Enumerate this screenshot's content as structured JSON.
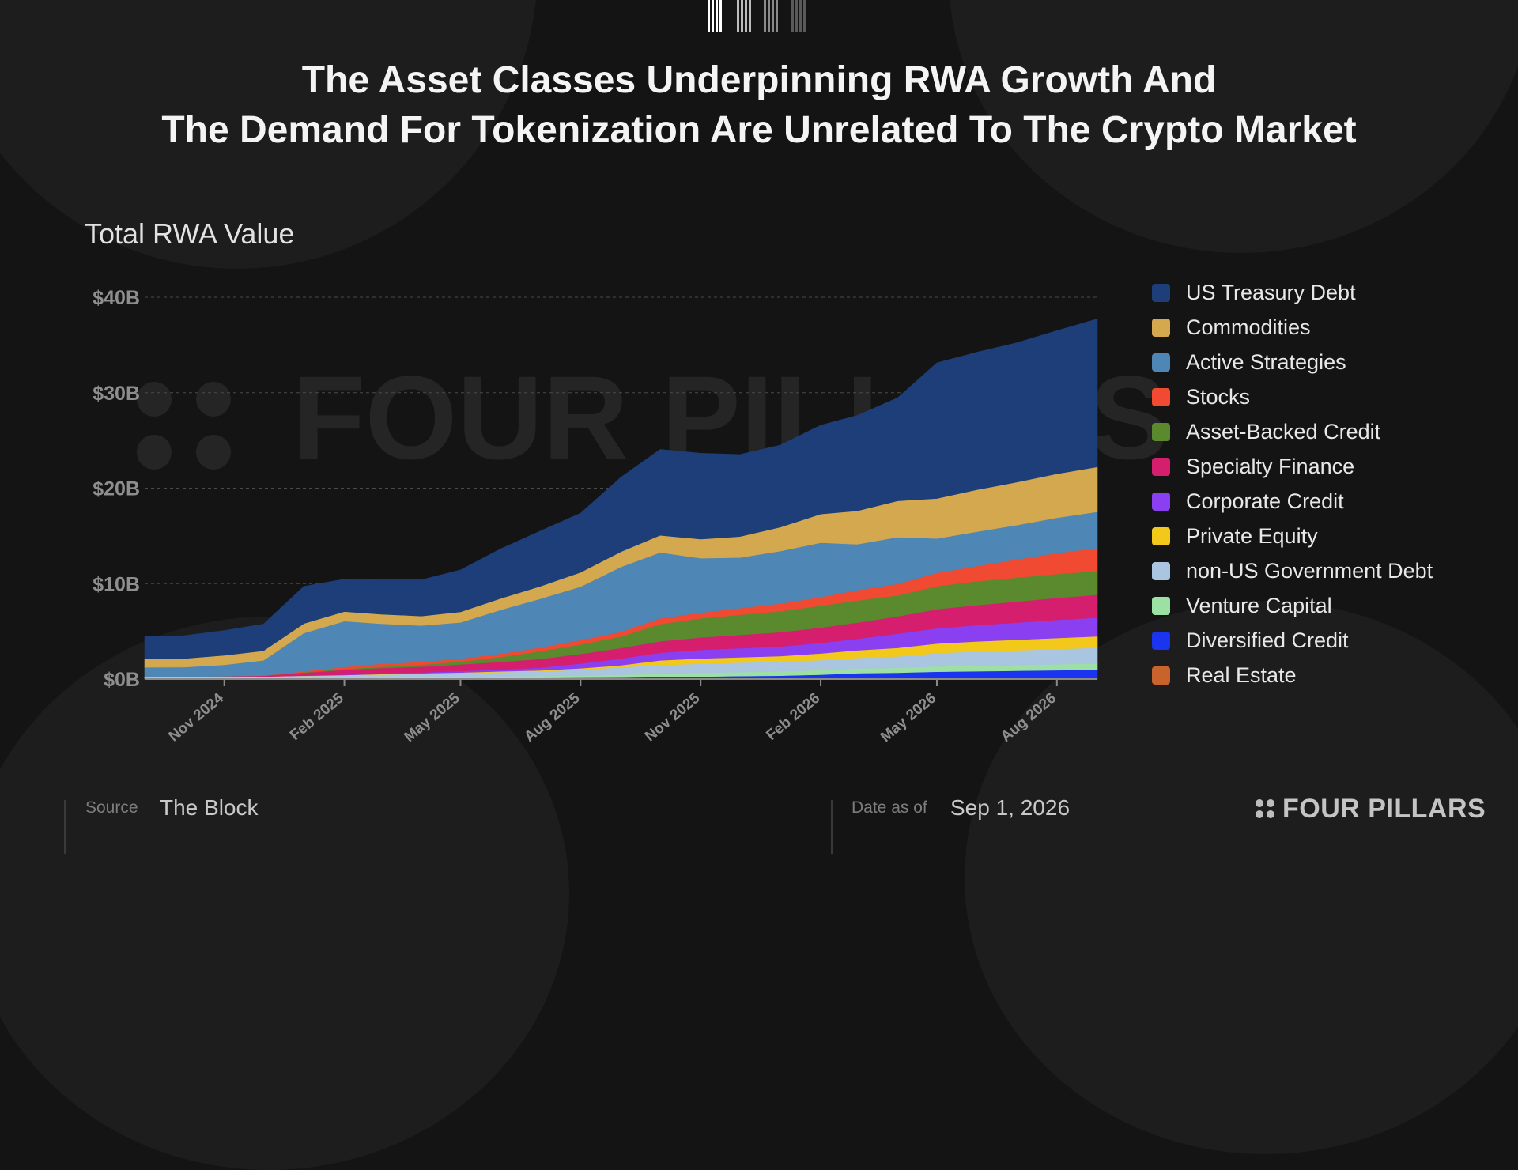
{
  "header": {
    "title_line1": "The Asset Classes Underpinning RWA Growth And",
    "title_line2": "The Demand For Tokenization Are Unrelated To The Crypto Market"
  },
  "footer": {
    "source_label": "Source",
    "source_value": "The Block",
    "date_label": "Date as of",
    "date_value": "Sep 1, 2026",
    "brand": "FOUR PILLARS"
  },
  "watermark": "FOUR PILLARS",
  "chart_data": {
    "type": "area",
    "stacked": true,
    "subtitle": "Total RWA Value",
    "title": "",
    "xlabel": "",
    "ylabel": "",
    "ylim": [
      0,
      40
    ],
    "y_unit": "B",
    "y_ticks": [
      "$0B",
      "$10B",
      "$20B",
      "$30B",
      "$40B"
    ],
    "y_tick_values": [
      0,
      10,
      20,
      30,
      40
    ],
    "x_tick_labels": [
      "Nov 2024",
      "Feb 2025",
      "May 2025",
      "Aug 2025",
      "Nov 2025",
      "Feb 2026",
      "May 2026",
      "Aug 2026"
    ],
    "x_tick_dates": [
      "2024-11-01",
      "2025-02-01",
      "2025-05-01",
      "2025-08-01",
      "2025-11-01",
      "2026-02-01",
      "2026-05-01",
      "2026-08-01"
    ],
    "x_range": [
      "2024-09-01",
      "2026-09-01"
    ],
    "grid": true,
    "legend_position": "right",
    "x": [
      "2024-09-01",
      "2024-10-01",
      "2024-11-01",
      "2024-12-01",
      "2025-01-01",
      "2025-02-01",
      "2025-03-01",
      "2025-04-01",
      "2025-05-01",
      "2025-06-01",
      "2025-07-01",
      "2025-08-01",
      "2025-09-01",
      "2025-10-01",
      "2025-11-01",
      "2025-12-01",
      "2026-01-01",
      "2026-02-01",
      "2026-03-01",
      "2026-04-01",
      "2026-05-01",
      "2026-06-01",
      "2026-07-01",
      "2026-08-01",
      "2026-09-01"
    ],
    "series": [
      {
        "name": "Real Estate",
        "color": "#c8632c",
        "values": [
          0.02,
          0.02,
          0.02,
          0.03,
          0.03,
          0.03,
          0.04,
          0.04,
          0.04,
          0.05,
          0.05,
          0.05,
          0.05,
          0.06,
          0.06,
          0.06,
          0.06,
          0.06,
          0.07,
          0.07,
          0.07,
          0.07,
          0.07,
          0.08,
          0.08
        ]
      },
      {
        "name": "Diversified Credit",
        "color": "#1b34f0",
        "values": [
          0.02,
          0.02,
          0.02,
          0.02,
          0.03,
          0.03,
          0.03,
          0.04,
          0.04,
          0.05,
          0.06,
          0.08,
          0.1,
          0.15,
          0.2,
          0.25,
          0.3,
          0.4,
          0.55,
          0.6,
          0.7,
          0.75,
          0.8,
          0.85,
          0.9
        ]
      },
      {
        "name": "Venture Capital",
        "color": "#9de0a3",
        "values": [
          0.05,
          0.05,
          0.05,
          0.06,
          0.07,
          0.08,
          0.1,
          0.12,
          0.15,
          0.18,
          0.2,
          0.25,
          0.3,
          0.35,
          0.4,
          0.42,
          0.45,
          0.48,
          0.5,
          0.5,
          0.55,
          0.58,
          0.6,
          0.62,
          0.65
        ]
      },
      {
        "name": "non-US Government Debt",
        "color": "#a9c5e0",
        "values": [
          0.1,
          0.1,
          0.12,
          0.15,
          0.2,
          0.25,
          0.3,
          0.35,
          0.4,
          0.45,
          0.5,
          0.6,
          0.8,
          0.9,
          0.95,
          1.0,
          1.0,
          1.05,
          1.1,
          1.2,
          1.4,
          1.5,
          1.55,
          1.6,
          1.65
        ]
      },
      {
        "name": "Private Equity",
        "color": "#f2c91a",
        "values": [
          0.0,
          0.0,
          0.0,
          0.0,
          0.02,
          0.03,
          0.05,
          0.05,
          0.06,
          0.08,
          0.1,
          0.15,
          0.2,
          0.5,
          0.55,
          0.55,
          0.6,
          0.7,
          0.8,
          0.9,
          1.0,
          1.05,
          1.1,
          1.15,
          1.2
        ]
      },
      {
        "name": "Corporate Credit",
        "color": "#8a3ff0",
        "values": [
          0.0,
          0.0,
          0.0,
          0.0,
          0.02,
          0.05,
          0.08,
          0.1,
          0.15,
          0.2,
          0.3,
          0.5,
          0.7,
          0.8,
          0.9,
          0.95,
          1.0,
          1.1,
          1.2,
          1.5,
          1.6,
          1.7,
          1.8,
          1.9,
          1.95
        ]
      },
      {
        "name": "Specialty Finance",
        "color": "#d61e6e",
        "values": [
          0.05,
          0.06,
          0.08,
          0.1,
          0.3,
          0.5,
          0.55,
          0.6,
          0.7,
          0.8,
          0.9,
          1.0,
          1.1,
          1.2,
          1.3,
          1.4,
          1.5,
          1.6,
          1.7,
          1.8,
          2.0,
          2.1,
          2.2,
          2.3,
          2.4
        ]
      },
      {
        "name": "Asset-Backed Credit",
        "color": "#5b8a2e",
        "values": [
          0.0,
          0.0,
          0.0,
          0.0,
          0.05,
          0.1,
          0.15,
          0.2,
          0.3,
          0.5,
          0.8,
          1.0,
          1.2,
          1.8,
          2.0,
          2.1,
          2.2,
          2.3,
          2.3,
          2.2,
          2.4,
          2.5,
          2.5,
          2.5,
          2.5
        ]
      },
      {
        "name": "Stocks",
        "color": "#f04a32",
        "values": [
          0.0,
          0.0,
          0.0,
          0.0,
          0.1,
          0.2,
          0.3,
          0.3,
          0.3,
          0.35,
          0.4,
          0.45,
          0.5,
          0.6,
          0.6,
          0.7,
          0.8,
          0.9,
          1.1,
          1.2,
          1.4,
          1.6,
          1.9,
          2.2,
          2.4
        ]
      },
      {
        "name": "Active Strategies",
        "color": "#4e86b5",
        "values": [
          1.0,
          1.0,
          1.2,
          1.6,
          4.0,
          4.8,
          4.2,
          3.8,
          3.8,
          4.6,
          5.1,
          5.6,
          6.8,
          6.9,
          5.7,
          5.3,
          5.5,
          5.7,
          4.8,
          4.9,
          3.6,
          3.6,
          3.6,
          3.7,
          3.8
        ]
      },
      {
        "name": "Commodities",
        "color": "#d3a84e",
        "values": [
          0.9,
          0.9,
          1.0,
          1.0,
          1.0,
          1.0,
          1.0,
          1.0,
          1.1,
          1.2,
          1.3,
          1.5,
          1.6,
          1.8,
          2.0,
          2.2,
          2.5,
          3.0,
          3.5,
          3.8,
          4.2,
          4.4,
          4.5,
          4.6,
          4.7
        ]
      },
      {
        "name": "US Treasury Debt",
        "color": "#1d3e78",
        "values": [
          2.3,
          2.4,
          2.6,
          2.8,
          3.9,
          3.4,
          3.6,
          3.8,
          4.4,
          5.2,
          5.8,
          6.2,
          7.8,
          9.0,
          9.0,
          8.6,
          8.6,
          9.3,
          10.0,
          10.8,
          14.2,
          14.4,
          14.6,
          15.0,
          15.5
        ]
      }
    ]
  }
}
